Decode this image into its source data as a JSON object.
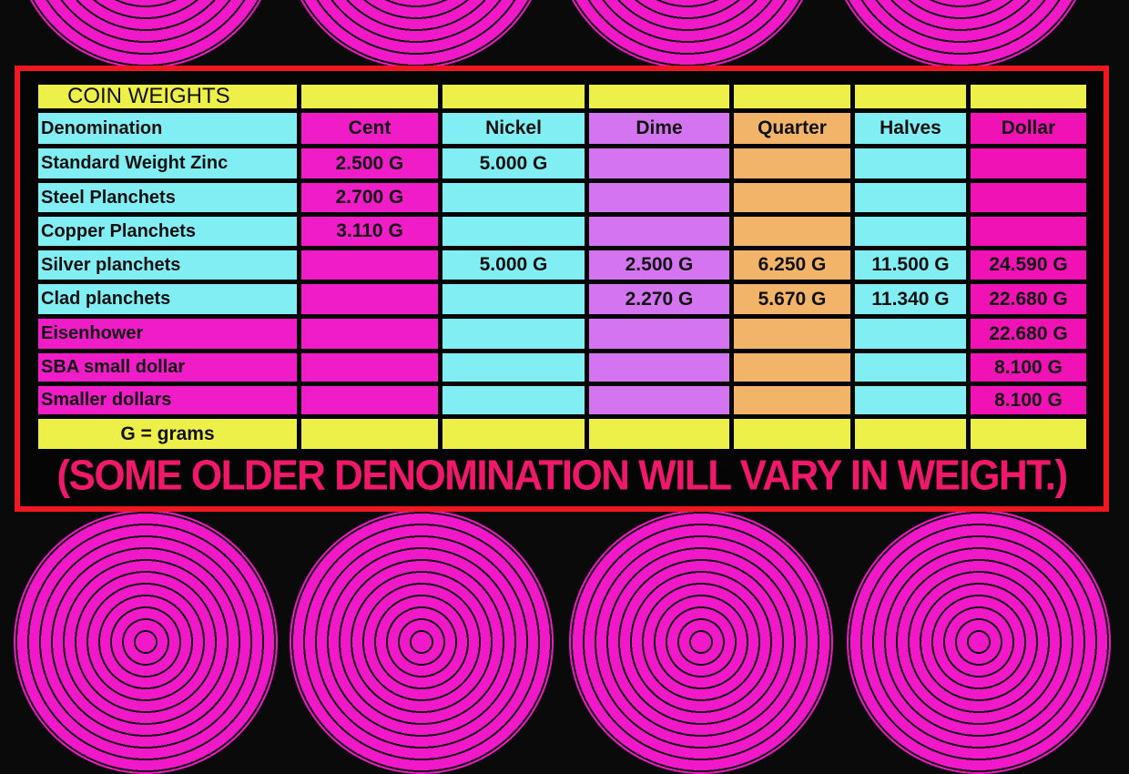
{
  "title": "COIN WEIGHTS",
  "header_label": "Denomination",
  "columns": [
    "Cent",
    "Nickel",
    "Dime",
    "Quarter",
    "Halves",
    "Dollar"
  ],
  "rows": [
    {
      "label": "Standard Weight Zinc",
      "values": [
        "2.500 G",
        "5.000  G",
        "",
        "",
        "",
        ""
      ]
    },
    {
      "label": "Steel Planchets",
      "values": [
        "2.700 G",
        "",
        "",
        "",
        "",
        ""
      ]
    },
    {
      "label": "Copper Planchets",
      "values": [
        "3.110 G",
        "",
        "",
        "",
        "",
        ""
      ]
    },
    {
      "label": "Silver planchets",
      "values": [
        "",
        "5.000  G",
        "2.500 G",
        "6.250  G",
        "11.500 G",
        "24.590 G"
      ]
    },
    {
      "label": "Clad planchets",
      "values": [
        "",
        "",
        "2.270 G",
        "5.670  G",
        "11.340 G",
        "22.680 G"
      ]
    },
    {
      "label": "Eisenhower",
      "values": [
        "",
        "",
        "",
        "",
        "",
        "22.680 G"
      ]
    },
    {
      "label": "SBA small dollar",
      "values": [
        "",
        "",
        "",
        "",
        "",
        "8.100 G"
      ]
    },
    {
      "label": "Smaller dollars",
      "values": [
        "",
        "",
        "",
        "",
        "",
        "8.100 G"
      ]
    }
  ],
  "legend": "G = grams",
  "footnote": "(SOME OLDER DENOMINATION WILL VARY IN WEIGHT.)",
  "colors": {
    "yellow": "#eef04a",
    "cyan": "#80eef2",
    "magenta": "#f01cc8",
    "purple": "#d474f0",
    "orange": "#f2b468",
    "frame": "#f01820",
    "footnote": "#f0186a"
  }
}
